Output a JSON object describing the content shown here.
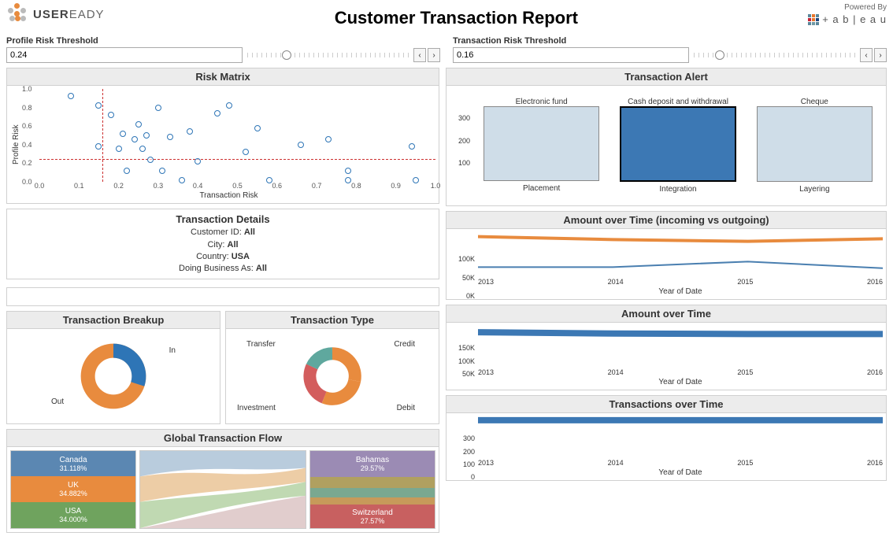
{
  "header": {
    "title": "Customer Transaction Report",
    "logo_text_bold": "USER",
    "logo_text_rest": "EADY",
    "powered_by": "Powered By",
    "tableau_text": "+ a b | e a u"
  },
  "profile_threshold": {
    "label": "Profile Risk Threshold",
    "value": "0.24",
    "slider_pct": 24
  },
  "transaction_threshold": {
    "label": "Transaction Risk Threshold",
    "value": "0.16",
    "slider_pct": 16
  },
  "risk_matrix": {
    "title": "Risk Matrix",
    "xlabel": "Transaction Risk",
    "ylabel": "Profile Risk",
    "xlim": [
      0.0,
      1.0
    ],
    "ylim": [
      0.0,
      1.0
    ],
    "xticks": [
      "0.0",
      "0.1",
      "0.2",
      "0.3",
      "0.4",
      "0.5",
      "0.6",
      "0.7",
      "0.8",
      "0.9",
      "1.0"
    ],
    "yticks": [
      "0.0",
      "0.2",
      "0.4",
      "0.6",
      "0.8",
      "1.0"
    ],
    "ref_x": 0.16,
    "ref_y": 0.24,
    "marker_color": "#2e75b6",
    "ref_color": "#cc3030",
    "points": [
      [
        0.08,
        0.92
      ],
      [
        0.15,
        0.82
      ],
      [
        0.15,
        0.38
      ],
      [
        0.18,
        0.72
      ],
      [
        0.2,
        0.36
      ],
      [
        0.21,
        0.52
      ],
      [
        0.22,
        0.12
      ],
      [
        0.24,
        0.46
      ],
      [
        0.25,
        0.62
      ],
      [
        0.26,
        0.36
      ],
      [
        0.27,
        0.5
      ],
      [
        0.28,
        0.24
      ],
      [
        0.3,
        0.8
      ],
      [
        0.31,
        0.12
      ],
      [
        0.33,
        0.48
      ],
      [
        0.36,
        0.02
      ],
      [
        0.38,
        0.54
      ],
      [
        0.4,
        0.22
      ],
      [
        0.45,
        0.74
      ],
      [
        0.48,
        0.82
      ],
      [
        0.52,
        0.32
      ],
      [
        0.55,
        0.58
      ],
      [
        0.58,
        0.02
      ],
      [
        0.66,
        0.4
      ],
      [
        0.73,
        0.46
      ],
      [
        0.78,
        0.02
      ],
      [
        0.78,
        0.12
      ],
      [
        0.94,
        0.38
      ],
      [
        0.95,
        0.02
      ]
    ]
  },
  "details": {
    "title": "Transaction Details",
    "customer_label": "Customer ID:",
    "customer_value": "All",
    "city_label": "City:",
    "city_value": "All",
    "country_label": "Country:",
    "country_value": "USA",
    "dba_label": "Doing Business As:",
    "dba_value": "All"
  },
  "breakup": {
    "title": "Transaction Breakup",
    "type": "donut",
    "segments": [
      {
        "label": "In",
        "value": 30,
        "color": "#2e75b6"
      },
      {
        "label": "Out",
        "value": 70,
        "color": "#e88b3e"
      }
    ],
    "label_in": "In",
    "label_out": "Out"
  },
  "txn_type": {
    "title": "Transaction Type",
    "type": "donut",
    "segments": [
      {
        "label": "Credit",
        "value": 30,
        "color": "#e88b3e"
      },
      {
        "label": "Debit",
        "value": 27,
        "color": "#e88b3e"
      },
      {
        "label": "Investment",
        "value": 23,
        "color": "#d35d5d"
      },
      {
        "label": "Transfer",
        "value": 20,
        "color": "#5fa89e"
      }
    ],
    "label_positions": {
      "Credit": "top-right",
      "Debit": "bottom-right",
      "Investment": "bottom-left",
      "Transfer": "top-left"
    }
  },
  "alert": {
    "title": "Transaction Alert",
    "ymax": 340,
    "yticks": [
      100,
      200,
      300
    ],
    "columns": [
      {
        "top": "Electronic fund",
        "bottom": "Placement",
        "value": 335,
        "color": "#cfdde8",
        "border": "#888"
      },
      {
        "top": "Cash deposit and withdrawal",
        "bottom": "Integration",
        "value": 340,
        "color": "#3c78b4",
        "border": "#000"
      },
      {
        "top": "Cheque",
        "bottom": "Layering",
        "value": 340,
        "color": "#cfdde8",
        "border": "#888"
      }
    ]
  },
  "amount_io": {
    "title": "Amount over Time (incoming vs outgoing)",
    "xlabel": "Year of Date",
    "years": [
      "2013",
      "2014",
      "2015",
      "2016"
    ],
    "yticks": [
      {
        "v": 0,
        "l": "0K"
      },
      {
        "v": 50000,
        "l": "50K"
      },
      {
        "v": 100000,
        "l": "100K"
      }
    ],
    "ymax": 120000,
    "series": [
      {
        "name": "outgoing",
        "color": "#e88b3e",
        "width": 4,
        "values": [
          108000,
          100000,
          95000,
          102000
        ]
      },
      {
        "name": "incoming",
        "color": "#4a7fb0",
        "width": 2,
        "values": [
          25000,
          25000,
          40000,
          22000
        ]
      }
    ]
  },
  "amount_total": {
    "title": "Amount over Time",
    "xlabel": "Year of Date",
    "years": [
      "2013",
      "2014",
      "2015",
      "2016"
    ],
    "yticks": [
      {
        "v": 50000,
        "l": "50K"
      },
      {
        "v": 100000,
        "l": "100K"
      },
      {
        "v": 150000,
        "l": "150K"
      }
    ],
    "ymax": 160000,
    "series": [
      {
        "name": "total",
        "color": "#3c78b4",
        "width": 8,
        "values": [
          135000,
          130000,
          128000,
          128000
        ]
      }
    ]
  },
  "txn_count": {
    "title": "Transactions over Time",
    "xlabel": "Year of Date",
    "years": [
      "2013",
      "2014",
      "2015",
      "2016"
    ],
    "yticks": [
      {
        "v": 0,
        "l": "0"
      },
      {
        "v": 100,
        "l": "100"
      },
      {
        "v": 200,
        "l": "200"
      },
      {
        "v": 300,
        "l": "300"
      }
    ],
    "ymax": 320,
    "series": [
      {
        "name": "count",
        "color": "#3c78b4",
        "width": 8,
        "values": [
          290,
          290,
          290,
          290
        ]
      }
    ]
  },
  "global_flow": {
    "title": "Global Transaction Flow",
    "left": [
      {
        "country": "Canada",
        "pct": "31.118%",
        "color": "#5b87b2"
      },
      {
        "country": "UK",
        "pct": "34.882%",
        "color": "#e88b3e"
      },
      {
        "country": "USA",
        "pct": "34.000%",
        "color": "#6fa35e"
      }
    ],
    "right": [
      {
        "country": "Bahamas",
        "pct": "29.57%",
        "color": "#9b8bb4",
        "h": 34
      },
      {
        "country": "",
        "pct": "",
        "color": "#b0a060",
        "h": 14
      },
      {
        "country": "",
        "pct": "",
        "color": "#7aa890",
        "h": 12
      },
      {
        "country": "",
        "pct": "",
        "color": "#c79a5a",
        "h": 10
      },
      {
        "country": "Switzerland",
        "pct": "27.57%",
        "color": "#c86060",
        "h": 30
      }
    ]
  }
}
